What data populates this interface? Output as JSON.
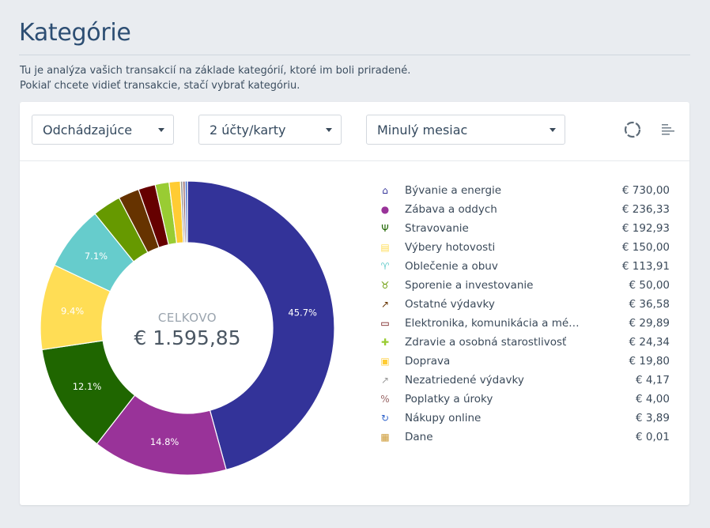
{
  "page": {
    "title": "Kategórie",
    "intro_line1": "Tu je analýza vašich transakcií na základe kategórií, ktoré im boli priradené.",
    "intro_line2": "Pokiaľ chcete vidieť transakcie, stačí vybrať kategóriu."
  },
  "toolbar": {
    "direction": "Odchádzajúce",
    "accounts": "2 účty/karty",
    "period": "Minulý mesiac",
    "chart_view_icon": "donut-chart-icon",
    "list_view_icon": "sort-list-icon"
  },
  "summary": {
    "total_label": "CELKOVO",
    "total_value": "€ 1.595,85"
  },
  "categories": [
    {
      "name": "Bývanie a energie",
      "value": "€ 730,00",
      "color": "#333399",
      "icon": "house-icon"
    },
    {
      "name": "Zábava a oddych",
      "value": "€ 236,33",
      "color": "#993399",
      "icon": "ball-icon"
    },
    {
      "name": "Stravovanie",
      "value": "€ 192,93",
      "color": "#1f6600",
      "icon": "cutlery-icon"
    },
    {
      "name": "Výbery hotovosti",
      "value": "€ 150,00",
      "color": "#ffdd55",
      "icon": "atm-icon"
    },
    {
      "name": "Oblečenie a obuv",
      "value": "€ 113,91",
      "color": "#66cccc",
      "icon": "shirt-icon"
    },
    {
      "name": "Sporenie a investovanie",
      "value": "€ 50,00",
      "color": "#669900",
      "icon": "piggy-bank-icon"
    },
    {
      "name": "Ostatné výdavky",
      "value": "€ 36,58",
      "color": "#663300",
      "icon": "arrow-out-icon"
    },
    {
      "name": "Elektronika, komunikácia a mé…",
      "value": "€ 29,89",
      "color": "#660000",
      "icon": "devices-icon"
    },
    {
      "name": "Zdravie a osobná starostlivosť",
      "value": "€ 24,34",
      "color": "#99cc33",
      "icon": "medkit-icon"
    },
    {
      "name": "Doprava",
      "value": "€ 19,80",
      "color": "#ffcc33",
      "icon": "bus-icon"
    },
    {
      "name": "Nezatriedené výdavky",
      "value": "€ 4,17",
      "color": "#999999",
      "icon": "arrow-out-light-icon"
    },
    {
      "name": "Poplatky a úroky",
      "value": "€ 4,00",
      "color": "#996666",
      "icon": "fee-icon"
    },
    {
      "name": "Nákupy online",
      "value": "€ 3,89",
      "color": "#3366cc",
      "icon": "cart-icon"
    },
    {
      "name": "Dane",
      "value": "€ 0,01",
      "color": "#cc9933",
      "icon": "tax-icon"
    }
  ],
  "chart_data": {
    "type": "pie",
    "categories": [
      "Bývanie a energie",
      "Zábava a oddych",
      "Stravovanie",
      "Výbery hotovosti",
      "Oblečenie a obuv",
      "Sporenie a investovanie",
      "Ostatné výdavky",
      "Elektronika, komunikácia a mé…",
      "Zdravie a osobná starostlivosť",
      "Doprava",
      "Nezatriedené výdavky",
      "Poplatky a úroky",
      "Nákupy online",
      "Dane"
    ],
    "values": [
      730.0,
      236.33,
      192.93,
      150.0,
      113.91,
      50.0,
      36.58,
      29.89,
      24.34,
      19.8,
      4.17,
      4.0,
      3.89,
      0.01
    ],
    "labels": [
      "45.7%",
      "14.8%",
      "12.1%",
      "9.4%",
      "7.1%",
      "",
      "",
      "",
      "",
      "",
      "",
      "",
      "",
      ""
    ],
    "colors": [
      "#333399",
      "#993399",
      "#1f6600",
      "#ffdd55",
      "#66cccc",
      "#669900",
      "#663300",
      "#660000",
      "#99cc33",
      "#ffcc33",
      "#999999",
      "#996666",
      "#3366cc",
      "#cc9933"
    ],
    "label_colors": [
      "#ffffff",
      "#ffffff",
      "#ffffff",
      "#ffffff",
      "#ffffff",
      "",
      "",
      "",
      "",
      "",
      "",
      "",
      "",
      ""
    ],
    "donut": true
  }
}
